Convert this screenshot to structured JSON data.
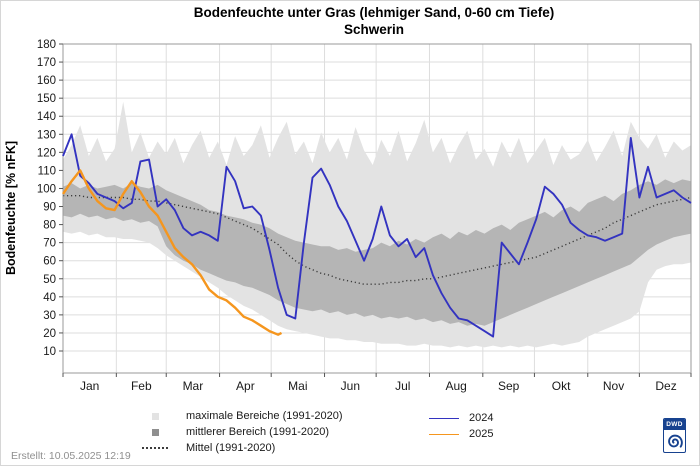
{
  "header": {
    "title": "Bodenfeuchte unter Gras (lehmiger Sand, 0-60 cm Tiefe)",
    "subtitle": "Schwerin"
  },
  "footer": {
    "created": "Erstellt:  10.05.2025 12:19"
  },
  "logo": {
    "text": "DWD"
  },
  "legend": {
    "left": [
      {
        "label": "maximale Bereiche (1991-2020)",
        "swatch": "square-light"
      },
      {
        "label": "mittlerer Bereich (1991-2020)",
        "swatch": "square-dark"
      },
      {
        "label": "Mittel (1991-2020)",
        "swatch": "dotted"
      }
    ],
    "right": [
      {
        "label": "2024",
        "swatch": "line-2024"
      },
      {
        "label": "2025",
        "swatch": "line-2025"
      }
    ]
  },
  "chart_data": {
    "type": "line",
    "title": "Bodenfeuchte unter Gras (lehmiger Sand, 0-60 cm Tiefe)",
    "subtitle": "Schwerin",
    "ylabel": "Bodenfeuchte [% nFK]",
    "ylim": [
      10,
      180
    ],
    "y_ticks": [
      180,
      170,
      160,
      150,
      140,
      130,
      120,
      110,
      100,
      90,
      80,
      70,
      60,
      50,
      40,
      30,
      20,
      10
    ],
    "grid": true,
    "legend_position": "bottom",
    "x_unit": "day_of_year",
    "x_tick_labels": [
      "Jan",
      "Feb",
      "Mar",
      "Apr",
      "Mai",
      "Jun",
      "Jul",
      "Aug",
      "Sep",
      "Okt",
      "Nov",
      "Dez"
    ],
    "month_start_days": [
      1,
      32,
      61,
      92,
      122,
      153,
      183,
      214,
      245,
      275,
      306,
      336,
      367
    ],
    "colors": {
      "band_max": "#e3e3e3",
      "band_mid": "#b5b5b5",
      "mean": "#3c3c3c",
      "y2024": "#3333c0",
      "y2025": "#f5961e"
    },
    "days": [
      1,
      6,
      11,
      16,
      21,
      26,
      31,
      36,
      41,
      46,
      51,
      56,
      61,
      66,
      71,
      76,
      81,
      86,
      91,
      96,
      101,
      106,
      111,
      116,
      121,
      126,
      131,
      136,
      141,
      146,
      151,
      156,
      161,
      166,
      171,
      176,
      181,
      186,
      191,
      196,
      201,
      206,
      211,
      216,
      221,
      226,
      231,
      236,
      241,
      246,
      251,
      256,
      261,
      266,
      271,
      276,
      281,
      286,
      291,
      296,
      301,
      306,
      311,
      316,
      321,
      326,
      331,
      336,
      341,
      346,
      351,
      356,
      361,
      366
    ],
    "series": [
      {
        "name": "maximale Bereiche (1991-2020)",
        "type": "band",
        "color": "#e3e3e3",
        "upper": [
          116,
          124,
          135,
          118,
          128,
          115,
          122,
          148,
          120,
          131,
          117,
          126,
          119,
          128,
          114,
          124,
          132,
          117,
          126,
          113,
          129,
          118,
          124,
          135,
          117,
          128,
          137,
          119,
          126,
          114,
          131,
          120,
          128,
          116,
          134,
          121,
          113,
          127,
          118,
          132,
          115,
          125,
          138,
          120,
          128,
          114,
          124,
          132,
          116,
          122,
          112,
          126,
          117,
          128,
          114,
          121,
          128,
          113,
          124,
          116,
          119,
          127,
          115,
          123,
          132,
          118,
          137,
          128,
          122,
          130,
          117,
          126,
          121,
          124
        ],
        "lower": [
          76,
          75,
          76,
          74,
          75,
          73,
          73,
          72,
          72,
          71,
          70,
          67,
          63,
          60,
          57,
          54,
          51,
          48,
          45,
          41,
          38,
          35,
          33,
          30,
          27,
          24,
          22,
          21,
          20,
          19,
          18,
          17,
          17,
          16,
          16,
          15,
          15,
          14,
          14,
          14,
          13,
          13,
          14,
          13,
          13,
          12,
          13,
          12,
          13,
          12,
          13,
          12,
          13,
          12,
          13,
          12,
          13,
          14,
          13,
          14,
          15,
          18,
          20,
          22,
          24,
          26,
          28,
          32,
          48,
          55,
          57,
          58,
          58,
          59
        ]
      },
      {
        "name": "mittlerer Bereich (1991-2020)",
        "type": "band",
        "color": "#b5b5b5",
        "upper": [
          101,
          103,
          100,
          102,
          100,
          101,
          102,
          100,
          103,
          101,
          100,
          102,
          99,
          97,
          95,
          93,
          91,
          88,
          87,
          85,
          84,
          83,
          81,
          80,
          78,
          75,
          73,
          71,
          70,
          69,
          68,
          68,
          66,
          67,
          65,
          66,
          67,
          70,
          68,
          71,
          69,
          72,
          70,
          73,
          75,
          72,
          76,
          74,
          77,
          75,
          78,
          80,
          77,
          81,
          83,
          85,
          87,
          84,
          88,
          90,
          87,
          92,
          94,
          96,
          93,
          97,
          99,
          102,
          104,
          102,
          105,
          103,
          105,
          104
        ],
        "lower": [
          85,
          84,
          86,
          84,
          85,
          83,
          84,
          82,
          83,
          81,
          82,
          79,
          68,
          63,
          60,
          58,
          55,
          53,
          51,
          49,
          48,
          46,
          45,
          43,
          41,
          38,
          36,
          34,
          33,
          32,
          33,
          31,
          32,
          30,
          31,
          29,
          30,
          28,
          29,
          28,
          29,
          27,
          28,
          26,
          27,
          25,
          26,
          24,
          25,
          24,
          26,
          28,
          30,
          32,
          34,
          36,
          38,
          40,
          42,
          44,
          46,
          48,
          50,
          52,
          54,
          56,
          58,
          62,
          66,
          69,
          71,
          73,
          74,
          75
        ]
      },
      {
        "name": "Mittel (1991-2020)",
        "type": "dotted-line",
        "color": "#3c3c3c",
        "values": [
          96,
          96,
          96,
          95,
          95,
          95,
          95,
          95,
          94,
          94,
          93,
          93,
          92,
          91,
          90,
          89,
          88,
          87,
          86,
          84,
          82,
          80,
          78,
          75,
          72,
          69,
          64,
          60,
          57,
          55,
          53,
          52,
          50,
          49,
          48,
          47,
          47,
          47,
          48,
          48,
          49,
          49,
          50,
          50,
          51,
          52,
          53,
          54,
          55,
          56,
          57,
          58,
          59,
          60,
          61,
          62,
          64,
          66,
          68,
          70,
          72,
          74,
          76,
          78,
          81,
          83,
          85,
          87,
          89,
          91,
          92,
          93,
          94,
          95
        ]
      },
      {
        "name": "2024",
        "type": "line",
        "color": "#3333c0",
        "values": [
          118,
          130,
          107,
          103,
          97,
          95,
          93,
          89,
          92,
          115,
          116,
          90,
          94,
          88,
          78,
          74,
          76,
          74,
          71,
          112,
          104,
          89,
          90,
          85,
          66,
          45,
          30,
          28,
          70,
          106,
          111,
          102,
          90,
          82,
          71,
          60,
          72,
          90,
          74,
          68,
          72,
          62,
          67,
          52,
          42,
          34,
          28,
          27,
          24,
          21,
          18,
          70,
          64,
          58,
          70,
          83,
          101,
          97,
          91,
          81,
          77,
          74,
          73,
          71,
          73,
          75,
          128,
          95,
          112,
          95,
          97,
          99,
          95,
          92
        ]
      },
      {
        "name": "2025",
        "type": "line",
        "color": "#f5961e",
        "days": [
          1,
          6,
          11,
          16,
          21,
          26,
          31,
          36,
          41,
          46,
          51,
          56,
          61,
          66,
          71,
          76,
          81,
          86,
          91,
          96,
          101,
          106,
          111,
          116,
          121,
          126,
          128
        ],
        "values": [
          97,
          104,
          110,
          100,
          93,
          89,
          88,
          97,
          104,
          98,
          90,
          85,
          76,
          67,
          62,
          58,
          52,
          44,
          40,
          38,
          34,
          29,
          27,
          24,
          21,
          19,
          20
        ]
      }
    ]
  }
}
